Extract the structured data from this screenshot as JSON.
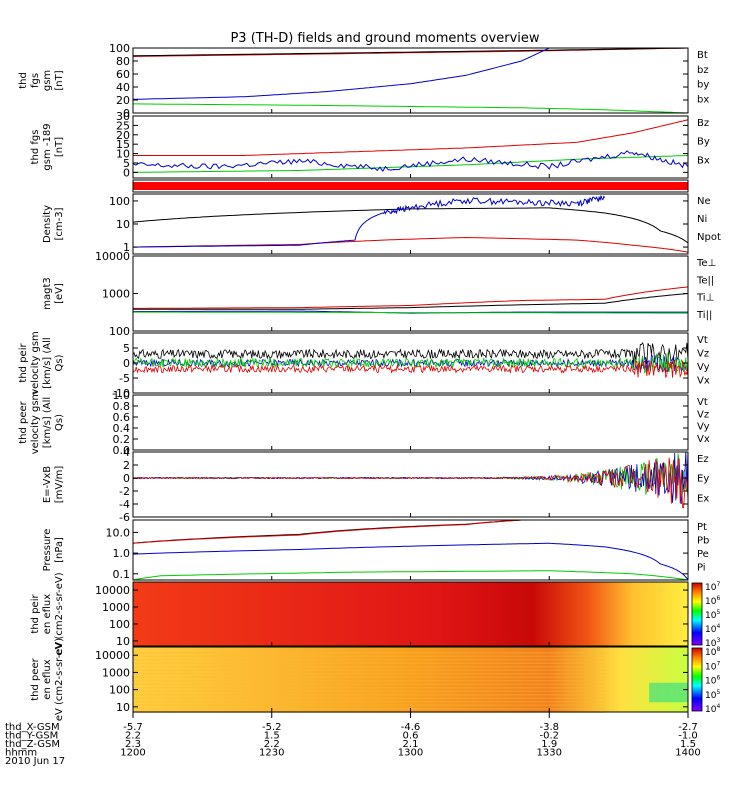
{
  "title": "P3 (TH-D) fields and ground moments overview",
  "colors": {
    "red": "#e00000",
    "green": "#00cc00",
    "blue": "#0000cc",
    "black": "#000000"
  },
  "ephemeris": {
    "labels": [
      "thd_X-GSM",
      "thd_Y-GSM",
      "thd_Z-GSM",
      "hhmm",
      "2010 Jun 17"
    ],
    "rows": [
      [
        "-5.7",
        "-5.2",
        "-4.6",
        "-3.8",
        "-2.7"
      ],
      [
        "2.2",
        "1.5",
        "0.6",
        "-0.2",
        "-1.0"
      ],
      [
        "2.3",
        "2.2",
        "2.1",
        "1.9",
        "1.5"
      ],
      [
        "1200",
        "1230",
        "1300",
        "1330",
        "1400"
      ]
    ]
  },
  "chart_data": [
    {
      "id": "fgs",
      "type": "line",
      "ylabel": "thd fgs gsm [nT]",
      "yticks": [
        "0",
        "20",
        "40",
        "60",
        "80",
        "100"
      ],
      "ylim": [
        0,
        100
      ],
      "legend": [
        {
          "text": "Bt",
          "color": "#000000"
        },
        {
          "text": "bz",
          "color": "#e00000"
        },
        {
          "text": "by",
          "color": "#00cc00"
        },
        {
          "text": "bx",
          "color": "#0000cc"
        }
      ],
      "series": [
        {
          "color": "#e00000",
          "x": [
            0,
            0.7,
            1.0
          ],
          "values": [
            87,
            95,
            100
          ]
        },
        {
          "color": "#000000",
          "x": [
            0,
            0.7,
            1.0
          ],
          "values": [
            88,
            96,
            100
          ]
        },
        {
          "color": "#0000cc",
          "x": [
            0,
            0.2,
            0.35,
            0.5,
            0.6,
            0.7,
            0.75
          ],
          "values": [
            21,
            25,
            33,
            45,
            58,
            80,
            100
          ]
        },
        {
          "color": "#00cc00",
          "x": [
            0,
            0.3,
            0.5,
            0.7,
            0.85,
            1.0
          ],
          "values": [
            14,
            12,
            10,
            8,
            5,
            0
          ]
        }
      ]
    },
    {
      "id": "fgs189",
      "type": "line",
      "ylabel": "thd fgs gsm -189 [nT]",
      "yticks": [
        "0",
        "5",
        "10",
        "15",
        "20",
        "25",
        "30"
      ],
      "ylim": [
        -3,
        30
      ],
      "legend": [
        {
          "text": "Bz",
          "color": "#e00000"
        },
        {
          "text": "By",
          "color": "#00cc00"
        },
        {
          "text": "Bx",
          "color": "#0000cc"
        }
      ],
      "series": [
        {
          "color": "#e00000",
          "x": [
            0,
            0.2,
            0.4,
            0.6,
            0.8,
            0.9,
            1.0
          ],
          "values": [
            9,
            9,
            11,
            13,
            16,
            21,
            28
          ]
        },
        {
          "color": "#00cc00",
          "x": [
            0,
            0.3,
            0.6,
            0.8,
            1.0
          ],
          "values": [
            0,
            1,
            4,
            7,
            9
          ]
        },
        {
          "color": "#0000cc",
          "x": [
            0,
            0.15,
            0.3,
            0.45,
            0.6,
            0.75,
            0.9,
            1.0
          ],
          "values": [
            4,
            3,
            6,
            2,
            7,
            3,
            11,
            3
          ]
        }
      ]
    },
    {
      "id": "density",
      "type": "line",
      "ylabel": "Density [cm-3]",
      "yticks": [
        "1",
        "10",
        "100"
      ],
      "ylim": [
        0.5,
        200
      ],
      "log": true,
      "legend": [
        {
          "text": "Ne",
          "color": "#e00000"
        },
        {
          "text": "Ni",
          "color": "#000000"
        },
        {
          "text": "Npot",
          "color": "#0000cc"
        }
      ],
      "series": [
        {
          "color": "#000000",
          "x": [
            0,
            0.2,
            0.5,
            0.75,
            0.85,
            0.95,
            1.0
          ],
          "values": [
            12,
            25,
            45,
            50,
            30,
            5,
            1.5
          ]
        },
        {
          "color": "#e00000",
          "x": [
            0,
            0.3,
            0.45,
            0.6,
            0.8,
            0.9,
            1.0
          ],
          "values": [
            1,
            1.3,
            2,
            2.6,
            2,
            1.2,
            0.6
          ]
        },
        {
          "color": "#0000cc",
          "x": [
            0,
            0.3,
            0.4,
            0.45,
            0.5,
            0.6,
            0.7,
            0.8,
            0.85
          ],
          "values": [
            1,
            1.2,
            2,
            30,
            50,
            110,
            90,
            80,
            140
          ]
        }
      ]
    },
    {
      "id": "temp",
      "type": "line",
      "ylabel": "magt3 [eV]",
      "yticks": [
        "100",
        "1000",
        "10000"
      ],
      "ylim": [
        100,
        10000
      ],
      "log": true,
      "legend": [
        {
          "text": "Te⊥",
          "color": "#e00000"
        },
        {
          "text": "Te||",
          "color": "#000000"
        },
        {
          "text": "Ti⊥",
          "color": "#0000cc"
        },
        {
          "text": "Ti||",
          "color": "#00cc00"
        }
      ],
      "series": [
        {
          "color": "#e00000",
          "x": [
            0,
            0.3,
            0.5,
            0.7,
            0.85,
            1.0
          ],
          "values": [
            400,
            420,
            480,
            650,
            700,
            1500
          ]
        },
        {
          "color": "#000000",
          "x": [
            0,
            0.3,
            0.5,
            0.7,
            0.85,
            1.0
          ],
          "values": [
            380,
            380,
            420,
            500,
            550,
            1000
          ]
        },
        {
          "color": "#0000cc",
          "x": [
            0,
            0.3,
            0.5,
            0.7,
            1.0
          ],
          "values": [
            330,
            340,
            300,
            320,
            320
          ]
        },
        {
          "color": "#00cc00",
          "x": [
            0,
            0.5,
            1.0
          ],
          "values": [
            320,
            310,
            300
          ]
        }
      ]
    },
    {
      "id": "peir",
      "type": "noisy",
      "ylabel": "thd peir velocity gsm [km/s] (All Qs)",
      "yticks": [
        "-10",
        "-5",
        "0",
        "5"
      ],
      "ylim": [
        -10,
        10
      ],
      "legend": [
        {
          "text": "Vt",
          "color": "#000000"
        },
        {
          "text": "Vz",
          "color": "#e00000"
        },
        {
          "text": "Vy",
          "color": "#00cc00"
        },
        {
          "text": "Vx",
          "color": "#0000cc"
        }
      ],
      "series": [
        {
          "color": "#000000",
          "base": 3,
          "amp": 1.5
        },
        {
          "color": "#0000cc",
          "base": 0,
          "amp": 1.2
        },
        {
          "color": "#00cc00",
          "base": 0,
          "amp": 1.5
        },
        {
          "color": "#e00000",
          "base": -2,
          "amp": 1.2
        }
      ]
    },
    {
      "id": "peer",
      "type": "empty",
      "ylabel": "thd peer velocity gsm [km/s] (All Qs)",
      "yticks": [
        "0.0",
        "0.2",
        "0.4",
        "0.6",
        "0.8",
        "1.0"
      ],
      "ylim": [
        0,
        1
      ],
      "legend": [
        {
          "text": "Vt",
          "color": "#000000"
        },
        {
          "text": "Vz",
          "color": "#e00000"
        },
        {
          "text": "Vy",
          "color": "#00cc00"
        },
        {
          "text": "Vx",
          "color": "#0000cc"
        }
      ],
      "series": []
    },
    {
      "id": "efield",
      "type": "noisy",
      "ylabel": "E=-VxB [mV/m]",
      "yticks": [
        "-6",
        "-4",
        "-2",
        "0",
        "2",
        "4"
      ],
      "ylim": [
        -6,
        4
      ],
      "legend": [
        {
          "text": "Ez",
          "color": "#e00000"
        },
        {
          "text": "Ey",
          "color": "#00cc00"
        },
        {
          "text": "Ex",
          "color": "#0000cc"
        }
      ],
      "series": [
        {
          "color": "#00cc00",
          "base": 0,
          "amp": 0.1,
          "grow": true
        },
        {
          "color": "#0000cc",
          "base": 0,
          "amp": 0.1,
          "grow": true
        },
        {
          "color": "#e00000",
          "base": 0,
          "amp": 0.1,
          "grow": true
        }
      ]
    },
    {
      "id": "pressure",
      "type": "line",
      "ylabel": "Pressure [nPa]",
      "yticks": [
        "0.1",
        "1.0",
        "10.0"
      ],
      "ylim": [
        0.05,
        40
      ],
      "log": true,
      "legend": [
        {
          "text": "Pt",
          "color": "#000000"
        },
        {
          "text": "Pb",
          "color": "#e00000"
        },
        {
          "text": "Pe",
          "color": "#00cc00"
        },
        {
          "text": "Pi",
          "color": "#0000cc"
        }
      ],
      "series": [
        {
          "color": "#000000",
          "x": [
            0,
            0.3,
            0.6,
            0.7
          ],
          "values": [
            3,
            8,
            25,
            40
          ]
        },
        {
          "color": "#e00000",
          "x": [
            0,
            0.3,
            0.6,
            0.7
          ],
          "values": [
            3,
            7.5,
            24,
            40
          ]
        },
        {
          "color": "#0000cc",
          "x": [
            0,
            0.3,
            0.6,
            0.75,
            0.85,
            0.95,
            1.0
          ],
          "values": [
            0.9,
            1.5,
            2.5,
            3,
            2,
            0.3,
            0.05
          ]
        },
        {
          "color": "#00cc00",
          "x": [
            0,
            0.05,
            0.4,
            0.75,
            0.9,
            1.0
          ],
          "values": [
            0.05,
            0.08,
            0.12,
            0.14,
            0.1,
            0.05
          ]
        }
      ]
    },
    {
      "id": "peir_en",
      "type": "heatmap",
      "ylabel": "thd peir en eflux eV (cm2-s-sr-eV)",
      "yticks": [
        "10",
        "100",
        "1000",
        "10000"
      ],
      "ylim": [
        5,
        30000
      ],
      "log": true,
      "colorbar": [
        "10^3",
        "10^4",
        "10^5",
        "10^6",
        "10^7"
      ]
    },
    {
      "id": "peer_en",
      "type": "heatmap",
      "ylabel": "thd peer en eflux eV (cm2-s-sr-eV)",
      "yticks": [
        "10",
        "100",
        "1000",
        "10000"
      ],
      "ylim": [
        5,
        30000
      ],
      "log": true,
      "colorbar": [
        "10^4",
        "10^5",
        "10^6",
        "10^7",
        "10^8"
      ]
    }
  ]
}
